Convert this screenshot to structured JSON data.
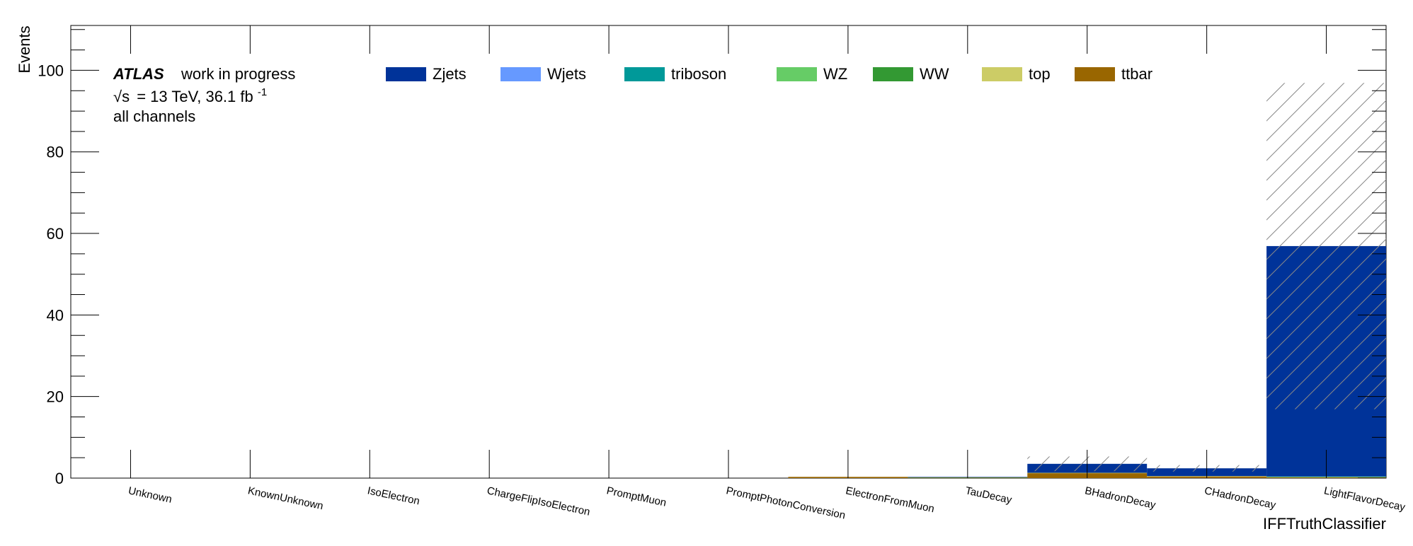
{
  "chart_data": {
    "type": "bar",
    "stacked": true,
    "xlabel": "IFFTruthClassifier",
    "ylabel": "Events",
    "ylim": [
      0,
      111
    ],
    "yticks": [
      0,
      20,
      40,
      60,
      80,
      100
    ],
    "categories": [
      "Unknown",
      "KnownUnknown",
      "IsoElectron",
      "ChargeFlipIsoElectron",
      "PromptMuon",
      "PromptPhotonConversion",
      "ElectronFromMuon",
      "TauDecay",
      "BHadronDecay",
      "CHadronDecay",
      "LightFlavorDecay"
    ],
    "series": [
      {
        "name": "ttbar",
        "color": "#996600",
        "values": [
          0,
          0,
          0,
          0,
          0,
          0,
          0.3,
          0.1,
          1.2,
          0.4,
          0.2
        ]
      },
      {
        "name": "top",
        "color": "#cccc66",
        "values": [
          0,
          0,
          0,
          0,
          0,
          0,
          0,
          0,
          0.1,
          0.1,
          0
        ]
      },
      {
        "name": "WW",
        "color": "#339933",
        "values": [
          0,
          0,
          0,
          0,
          0,
          0,
          0,
          0.1,
          0,
          0,
          0
        ]
      },
      {
        "name": "WZ",
        "color": "#66cc66",
        "values": [
          0,
          0,
          0,
          0,
          0,
          0,
          0,
          0,
          0,
          0,
          0.1
        ]
      },
      {
        "name": "triboson",
        "color": "#009999",
        "values": [
          0,
          0,
          0,
          0,
          0,
          0,
          0,
          0,
          0,
          0,
          0.1
        ]
      },
      {
        "name": "Wjets",
        "color": "#6699ff",
        "values": [
          0,
          0,
          0,
          0,
          0,
          0,
          0,
          0,
          0,
          0,
          0
        ]
      },
      {
        "name": "Zjets",
        "color": "#003399",
        "values": [
          0,
          0,
          0,
          0,
          0,
          0,
          0,
          0.1,
          2.2,
          1.9,
          56.5
        ]
      }
    ],
    "uncertainty": [
      0,
      0,
      0,
      0,
      0,
      0,
      0,
      0,
      1.8,
      0.8,
      40
    ]
  },
  "labels": {
    "atlas": "ATLAS",
    "work": "work in progress",
    "sqrt": "√s",
    "energy": "= 13 TeV, 36.1 fb",
    "lumi_exp": "-1",
    "channels": "all channels"
  }
}
